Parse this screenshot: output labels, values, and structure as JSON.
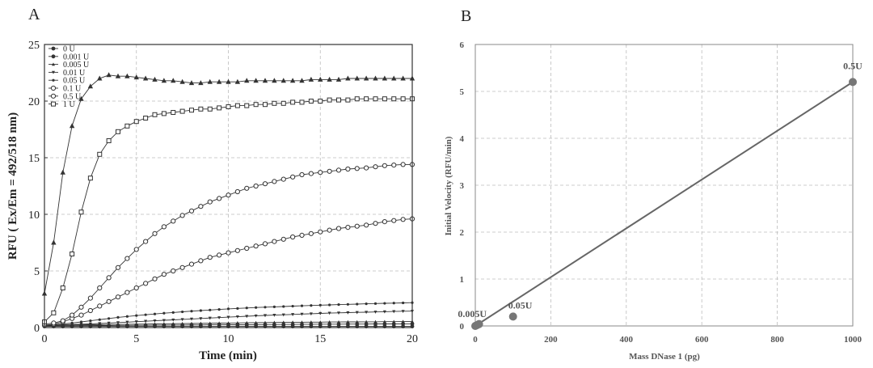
{
  "chart_data": [
    {
      "panel": "A",
      "type": "line",
      "xlabel": "Time (min)",
      "ylabel": "RFU ( Ex/Em = 492/518 nm)",
      "xlim": [
        0,
        20
      ],
      "ylim": [
        0,
        25
      ],
      "xticks": [
        0,
        5,
        10,
        15,
        20
      ],
      "yticks": [
        0,
        5,
        10,
        15,
        20,
        25
      ],
      "grid": true,
      "legend_position": "top-left",
      "x": [
        0,
        0.5,
        1,
        1.5,
        2,
        2.5,
        3,
        3.5,
        4,
        4.5,
        5,
        5.5,
        6,
        6.5,
        7,
        7.5,
        8,
        8.5,
        9,
        9.5,
        10,
        10.5,
        11,
        11.5,
        12,
        12.5,
        13,
        13.5,
        14,
        14.5,
        15,
        15.5,
        16,
        16.5,
        17,
        17.5,
        18,
        18.5,
        19,
        19.5,
        20
      ],
      "series": [
        {
          "name": "0 U",
          "marker": "circle-filled",
          "values": [
            0.1,
            0.1,
            0.1,
            0.1,
            0.1,
            0.1,
            0.1,
            0.1,
            0.1,
            0.1,
            0.1,
            0.1,
            0.1,
            0.1,
            0.1,
            0.1,
            0.1,
            0.1,
            0.1,
            0.1,
            0.1,
            0.1,
            0.1,
            0.1,
            0.1,
            0.1,
            0.1,
            0.1,
            0.1,
            0.1,
            0.1,
            0.1,
            0.1,
            0.1,
            0.1,
            0.1,
            0.1,
            0.1,
            0.1,
            0.1,
            0.1
          ]
        },
        {
          "name": "0.001 U",
          "marker": "circle-filled",
          "values": [
            0.15,
            0.15,
            0.16,
            0.16,
            0.17,
            0.17,
            0.18,
            0.18,
            0.19,
            0.19,
            0.2,
            0.2,
            0.21,
            0.21,
            0.22,
            0.22,
            0.23,
            0.23,
            0.24,
            0.24,
            0.25,
            0.25,
            0.26,
            0.26,
            0.27,
            0.27,
            0.28,
            0.28,
            0.29,
            0.29,
            0.3,
            0.3,
            0.3,
            0.31,
            0.31,
            0.31,
            0.32,
            0.32,
            0.32,
            0.33,
            0.33
          ]
        },
        {
          "name": "0.005 U",
          "marker": "triangle-small",
          "values": [
            0.2,
            0.21,
            0.22,
            0.23,
            0.24,
            0.25,
            0.26,
            0.27,
            0.28,
            0.29,
            0.3,
            0.31,
            0.32,
            0.33,
            0.34,
            0.35,
            0.36,
            0.37,
            0.38,
            0.39,
            0.4,
            0.41,
            0.42,
            0.43,
            0.44,
            0.45,
            0.46,
            0.47,
            0.47,
            0.48,
            0.48,
            0.49,
            0.49,
            0.5,
            0.5,
            0.51,
            0.51,
            0.52,
            0.52,
            0.53,
            0.53
          ]
        },
        {
          "name": "0.01 U",
          "marker": "triangle-down-small",
          "values": [
            0.2,
            0.22,
            0.24,
            0.27,
            0.3,
            0.33,
            0.36,
            0.4,
            0.44,
            0.48,
            0.52,
            0.56,
            0.6,
            0.64,
            0.68,
            0.72,
            0.76,
            0.8,
            0.84,
            0.88,
            0.92,
            0.96,
            1.0,
            1.04,
            1.07,
            1.1,
            1.13,
            1.16,
            1.19,
            1.22,
            1.25,
            1.28,
            1.3,
            1.32,
            1.34,
            1.36,
            1.38,
            1.4,
            1.42,
            1.44,
            1.45
          ]
        },
        {
          "name": "0.05 U",
          "marker": "star-small",
          "values": [
            0.2,
            0.25,
            0.32,
            0.4,
            0.5,
            0.6,
            0.7,
            0.8,
            0.9,
            0.98,
            1.06,
            1.13,
            1.2,
            1.27,
            1.33,
            1.39,
            1.45,
            1.5,
            1.55,
            1.6,
            1.65,
            1.69,
            1.73,
            1.77,
            1.8,
            1.83,
            1.86,
            1.89,
            1.92,
            1.95,
            1.98,
            2.0,
            2.03,
            2.05,
            2.07,
            2.1,
            2.12,
            2.14,
            2.16,
            2.18,
            2.2
          ]
        },
        {
          "name": "0.1 U",
          "marker": "circle-open",
          "values": [
            0.2,
            0.3,
            0.5,
            0.8,
            1.1,
            1.5,
            1.9,
            2.3,
            2.7,
            3.1,
            3.5,
            3.9,
            4.3,
            4.7,
            5.0,
            5.3,
            5.6,
            5.9,
            6.2,
            6.4,
            6.6,
            6.8,
            7.0,
            7.2,
            7.4,
            7.6,
            7.8,
            8.0,
            8.15,
            8.3,
            8.45,
            8.6,
            8.75,
            8.85,
            8.95,
            9.05,
            9.2,
            9.35,
            9.45,
            9.55,
            9.6
          ]
        },
        {
          "name": "0.5 U",
          "marker": "circle-open",
          "values": [
            0.3,
            0.4,
            0.6,
            1.1,
            1.8,
            2.6,
            3.5,
            4.4,
            5.3,
            6.1,
            6.9,
            7.6,
            8.3,
            8.9,
            9.4,
            9.9,
            10.3,
            10.7,
            11.1,
            11.4,
            11.7,
            12.0,
            12.3,
            12.5,
            12.7,
            12.9,
            13.1,
            13.3,
            13.5,
            13.6,
            13.7,
            13.8,
            13.9,
            14.0,
            14.05,
            14.1,
            14.2,
            14.3,
            14.35,
            14.4,
            14.4
          ]
        },
        {
          "name": "1 U",
          "marker": "square-open",
          "values": [
            0.5,
            1.3,
            3.5,
            6.5,
            10.2,
            13.2,
            15.3,
            16.5,
            17.3,
            17.8,
            18.2,
            18.5,
            18.8,
            18.9,
            19.0,
            19.1,
            19.2,
            19.3,
            19.3,
            19.4,
            19.5,
            19.6,
            19.6,
            19.7,
            19.7,
            19.8,
            19.8,
            19.9,
            19.9,
            20.0,
            20.0,
            20.1,
            20.1,
            20.1,
            20.2,
            20.2,
            20.2,
            20.2,
            20.2,
            20.2,
            20.2
          ]
        },
        {
          "name": "",
          "marker": "triangle-filled",
          "values": [
            3.0,
            7.5,
            13.7,
            17.8,
            20.2,
            21.3,
            22.0,
            22.3,
            22.2,
            22.2,
            22.1,
            22.0,
            21.9,
            21.8,
            21.8,
            21.7,
            21.6,
            21.6,
            21.7,
            21.7,
            21.7,
            21.7,
            21.8,
            21.8,
            21.8,
            21.8,
            21.8,
            21.8,
            21.8,
            21.9,
            21.9,
            21.9,
            21.9,
            22.0,
            22.0,
            22.0,
            22.0,
            22.0,
            22.0,
            22.0,
            22.0
          ]
        }
      ]
    },
    {
      "panel": "B",
      "type": "line",
      "xlabel": "Mass DNase 1 (pg)",
      "ylabel": "Initial Velocity (RFU/min)",
      "xlim": [
        0,
        1000
      ],
      "ylim": [
        0,
        6
      ],
      "xticks": [
        0,
        200,
        400,
        600,
        800,
        1000
      ],
      "yticks": [
        0,
        1,
        2,
        3,
        4,
        5,
        6
      ],
      "grid": true,
      "fit_line": {
        "x": [
          0,
          1000
        ],
        "y": [
          0,
          5.2
        ]
      },
      "points": [
        {
          "x": 0,
          "y": 0,
          "label": ""
        },
        {
          "x": 5,
          "y": 0.02,
          "label": "0.005U"
        },
        {
          "x": 10,
          "y": 0.04,
          "label": ""
        },
        {
          "x": 100,
          "y": 0.2,
          "label": "0.05U"
        },
        {
          "x": 1000,
          "y": 5.2,
          "label": "0.5U"
        }
      ]
    }
  ],
  "panel_a_letter": "A",
  "panel_b_letter": "B",
  "panel_a_xlabel": "Time (min)",
  "panel_a_ylabel": "RFU ( Ex/Em = 492/518 nm)",
  "panel_b_xlabel": "Mass DNase 1 (pg)",
  "panel_b_ylabel": "Initial Velocity (RFU/min)",
  "colors": {
    "panel_a_line": "#333333",
    "panel_b_line": "#666666",
    "panel_b_point": "#777777",
    "grid": "#bcbcbc"
  }
}
